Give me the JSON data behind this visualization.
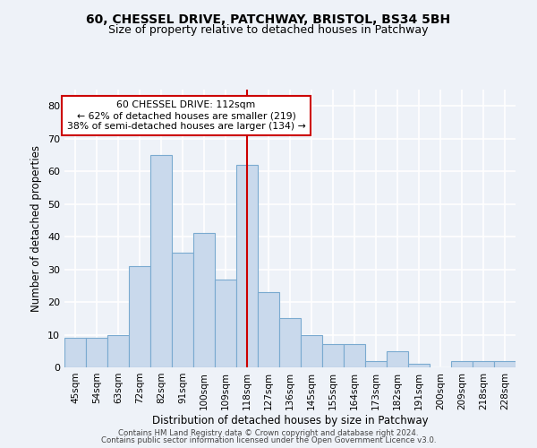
{
  "title1": "60, CHESSEL DRIVE, PATCHWAY, BRISTOL, BS34 5BH",
  "title2": "Size of property relative to detached houses in Patchway",
  "xlabel": "Distribution of detached houses by size in Patchway",
  "ylabel": "Number of detached properties",
  "categories": [
    "45sqm",
    "54sqm",
    "63sqm",
    "72sqm",
    "82sqm",
    "91sqm",
    "100sqm",
    "109sqm",
    "118sqm",
    "127sqm",
    "136sqm",
    "145sqm",
    "155sqm",
    "164sqm",
    "173sqm",
    "182sqm",
    "191sqm",
    "200sqm",
    "209sqm",
    "218sqm",
    "228sqm"
  ],
  "values": [
    9,
    9,
    10,
    31,
    65,
    35,
    41,
    27,
    62,
    23,
    15,
    10,
    7,
    7,
    2,
    5,
    1,
    0,
    2,
    2,
    2
  ],
  "bar_color": "#c9d9ec",
  "bar_edge_color": "#7aaad0",
  "ylim": [
    0,
    85
  ],
  "yticks": [
    0,
    10,
    20,
    30,
    40,
    50,
    60,
    70,
    80
  ],
  "annotation_text": "60 CHESSEL DRIVE: 112sqm\n← 62% of detached houses are smaller (219)\n38% of semi-detached houses are larger (134) →",
  "vline_x_index": 8.0,
  "vline_color": "#cc0000",
  "annotation_box_edge": "#cc0000",
  "footer1": "Contains HM Land Registry data © Crown copyright and database right 2024.",
  "footer2": "Contains public sector information licensed under the Open Government Licence v3.0.",
  "background_color": "#eef2f8",
  "grid_color": "#ffffff",
  "title1_fontsize": 10,
  "title2_fontsize": 9
}
